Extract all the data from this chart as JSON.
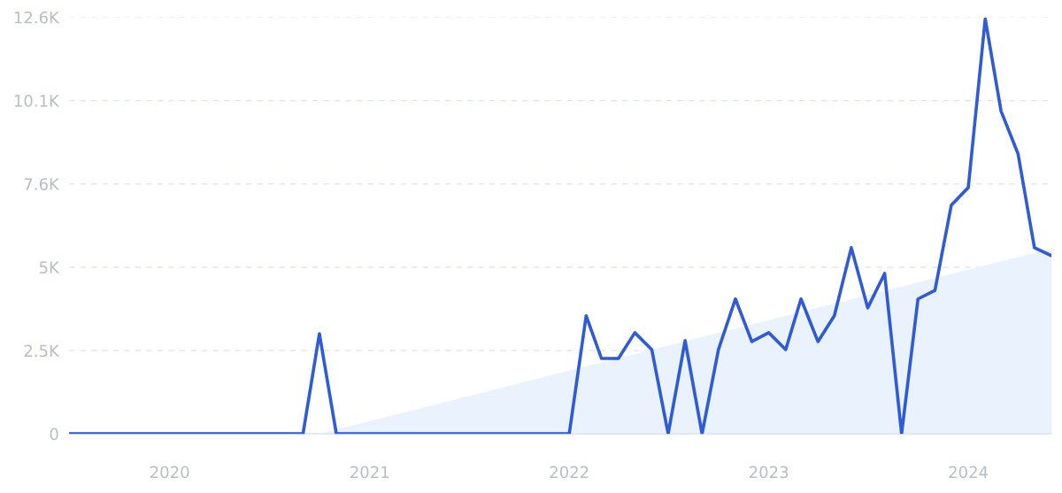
{
  "chart_data": {
    "type": "line",
    "x": [
      "2019-07",
      "2019-08",
      "2019-09",
      "2019-10",
      "2019-11",
      "2019-12",
      "2020-01",
      "2020-02",
      "2020-03",
      "2020-04",
      "2020-05",
      "2020-06",
      "2020-07",
      "2020-08",
      "2020-09",
      "2020-10",
      "2020-11",
      "2020-12",
      "2021-01",
      "2021-02",
      "2021-03",
      "2021-04",
      "2021-05",
      "2021-06",
      "2021-07",
      "2021-08",
      "2021-09",
      "2021-10",
      "2021-11",
      "2021-12",
      "2022-01",
      "2022-02",
      "2022-03",
      "2022-04",
      "2022-05",
      "2022-06",
      "2022-07",
      "2022-08",
      "2022-09",
      "2022-10",
      "2022-11",
      "2022-12",
      "2023-01",
      "2023-02",
      "2023-03",
      "2023-04",
      "2023-05",
      "2023-06",
      "2023-07",
      "2023-08",
      "2023-09",
      "2023-10",
      "2023-11",
      "2023-12",
      "2024-01",
      "2024-02",
      "2024-03",
      "2024-04",
      "2024-05",
      "2024-06"
    ],
    "series": [
      {
        "type": "area",
        "color": "#e9f2fd",
        "x": [
          "2020-10",
          "2024-06"
        ],
        "values": [
          0,
          5600
        ]
      },
      {
        "color": "#2e5bd6",
        "values": [
          0,
          0,
          0,
          0,
          0,
          0,
          0,
          0,
          0,
          0,
          0,
          0,
          0,
          0,
          0,
          3030,
          0,
          0,
          0,
          0,
          0,
          0,
          0,
          0,
          0,
          0,
          0,
          0,
          0,
          0,
          0,
          3570,
          2280,
          2280,
          3060,
          2550,
          0,
          2820,
          0,
          2550,
          4080,
          2790,
          3060,
          2550,
          4080,
          2790,
          3570,
          5630,
          3810,
          4850,
          0,
          4080,
          4340,
          6920,
          7450,
          12550,
          9760,
          8470,
          5630,
          5390
        ]
      }
    ],
    "xlim": [
      "2019-07",
      "2024-06"
    ],
    "xticks": [
      {
        "value": "2020-01",
        "label": "2020"
      },
      {
        "value": "2021-01",
        "label": "2021"
      },
      {
        "value": "2022-01",
        "label": "2022"
      },
      {
        "value": "2023-01",
        "label": "2023"
      },
      {
        "value": "2024-01",
        "label": "2024"
      }
    ],
    "ylim": [
      0,
      12600
    ],
    "yticks": [
      0,
      {
        "value": 2520,
        "label": "2.5K"
      },
      {
        "value": 5040,
        "label": "5K"
      },
      {
        "value": 7560,
        "label": "7.6K"
      },
      {
        "value": 10080,
        "label": "10.1K"
      },
      {
        "value": 12600,
        "label": "12.6K"
      }
    ],
    "grid": "y",
    "line_style": "solid",
    "marker": "none"
  }
}
